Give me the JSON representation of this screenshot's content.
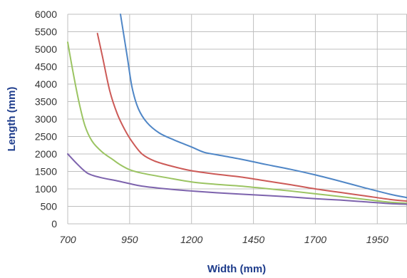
{
  "chart_data": {
    "type": "line",
    "title": "",
    "xlabel": "Width (mm)",
    "ylabel": "Length (mm)",
    "xlim": [
      700,
      2070
    ],
    "ylim": [
      0,
      6000
    ],
    "x_ticks": [
      700,
      950,
      1200,
      1450,
      1700,
      1950
    ],
    "y_ticks": [
      0,
      500,
      1000,
      1500,
      2000,
      2500,
      3000,
      3500,
      4000,
      4500,
      5000,
      5500,
      6000
    ],
    "grid": true,
    "colors": {
      "axis_title": "#1f3d8c",
      "grid": "#bfbfbf",
      "blue": "#4f86c6",
      "red": "#cc5a57",
      "green": "#9bc462",
      "purple": "#7d63ad"
    },
    "series": [
      {
        "color": "#4f86c6",
        "points": [
          [
            913,
            6000
          ],
          [
            940,
            4800
          ],
          [
            960,
            3900
          ],
          [
            985,
            3300
          ],
          [
            1020,
            2900
          ],
          [
            1070,
            2600
          ],
          [
            1130,
            2400
          ],
          [
            1200,
            2200
          ],
          [
            1250,
            2050
          ],
          [
            1300,
            1980
          ],
          [
            1400,
            1850
          ],
          [
            1500,
            1700
          ],
          [
            1600,
            1560
          ],
          [
            1700,
            1400
          ],
          [
            1800,
            1220
          ],
          [
            1900,
            1030
          ],
          [
            2000,
            850
          ],
          [
            2070,
            750
          ]
        ]
      },
      {
        "color": "#cc5a57",
        "points": [
          [
            820,
            5450
          ],
          [
            840,
            4800
          ],
          [
            870,
            3800
          ],
          [
            900,
            3150
          ],
          [
            930,
            2700
          ],
          [
            960,
            2350
          ],
          [
            1000,
            2000
          ],
          [
            1050,
            1800
          ],
          [
            1120,
            1650
          ],
          [
            1200,
            1520
          ],
          [
            1300,
            1420
          ],
          [
            1400,
            1340
          ],
          [
            1500,
            1230
          ],
          [
            1600,
            1120
          ],
          [
            1700,
            1000
          ],
          [
            1800,
            900
          ],
          [
            1900,
            800
          ],
          [
            2000,
            700
          ],
          [
            2070,
            650
          ]
        ]
      },
      {
        "color": "#9bc462",
        "points": [
          [
            700,
            5200
          ],
          [
            720,
            4400
          ],
          [
            745,
            3500
          ],
          [
            770,
            2800
          ],
          [
            800,
            2350
          ],
          [
            840,
            2050
          ],
          [
            880,
            1850
          ],
          [
            910,
            1700
          ],
          [
            950,
            1550
          ],
          [
            1000,
            1450
          ],
          [
            1100,
            1320
          ],
          [
            1200,
            1200
          ],
          [
            1300,
            1130
          ],
          [
            1400,
            1080
          ],
          [
            1500,
            1010
          ],
          [
            1600,
            940
          ],
          [
            1700,
            860
          ],
          [
            1800,
            780
          ],
          [
            1900,
            700
          ],
          [
            2000,
            620
          ],
          [
            2070,
            590
          ]
        ]
      },
      {
        "color": "#7d63ad",
        "points": [
          [
            700,
            2000
          ],
          [
            740,
            1700
          ],
          [
            780,
            1450
          ],
          [
            830,
            1330
          ],
          [
            900,
            1230
          ],
          [
            950,
            1150
          ],
          [
            1000,
            1080
          ],
          [
            1100,
            1000
          ],
          [
            1200,
            940
          ],
          [
            1300,
            890
          ],
          [
            1400,
            850
          ],
          [
            1500,
            810
          ],
          [
            1600,
            770
          ],
          [
            1700,
            720
          ],
          [
            1800,
            680
          ],
          [
            1900,
            630
          ],
          [
            2000,
            580
          ],
          [
            2070,
            560
          ]
        ]
      }
    ]
  }
}
